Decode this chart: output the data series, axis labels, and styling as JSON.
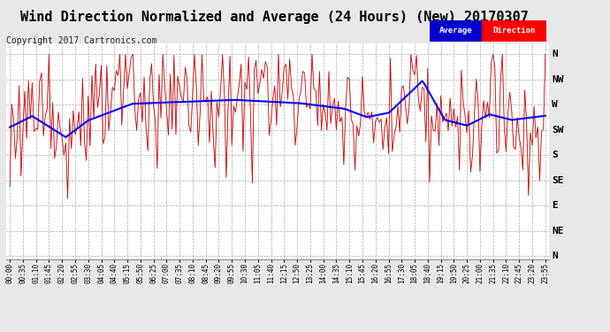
{
  "title": "Wind Direction Normalized and Average (24 Hours) (New) 20170307",
  "copyright": "Copyright 2017 Cartronics.com",
  "y_labels": [
    "N",
    "NW",
    "W",
    "SW",
    "S",
    "SE",
    "E",
    "NE",
    "N"
  ],
  "y_values": [
    360,
    315,
    270,
    225,
    180,
    135,
    90,
    45,
    0
  ],
  "y_lim": [
    -5,
    380
  ],
  "background_color": "#e8e8e8",
  "plot_bg_color": "#ffffff",
  "grid_color": "#aaaaaa",
  "red_color": "#ff0000",
  "blue_color": "#0000ff",
  "dark_color": "#333333",
  "legend_avg_bg": "#0000cc",
  "legend_dir_bg": "#ff0000",
  "legend_text_color": "#ffffff",
  "title_fontsize": 11,
  "copyright_fontsize": 7,
  "tick_fontsize": 5.5,
  "ylabel_fontsize": 8
}
